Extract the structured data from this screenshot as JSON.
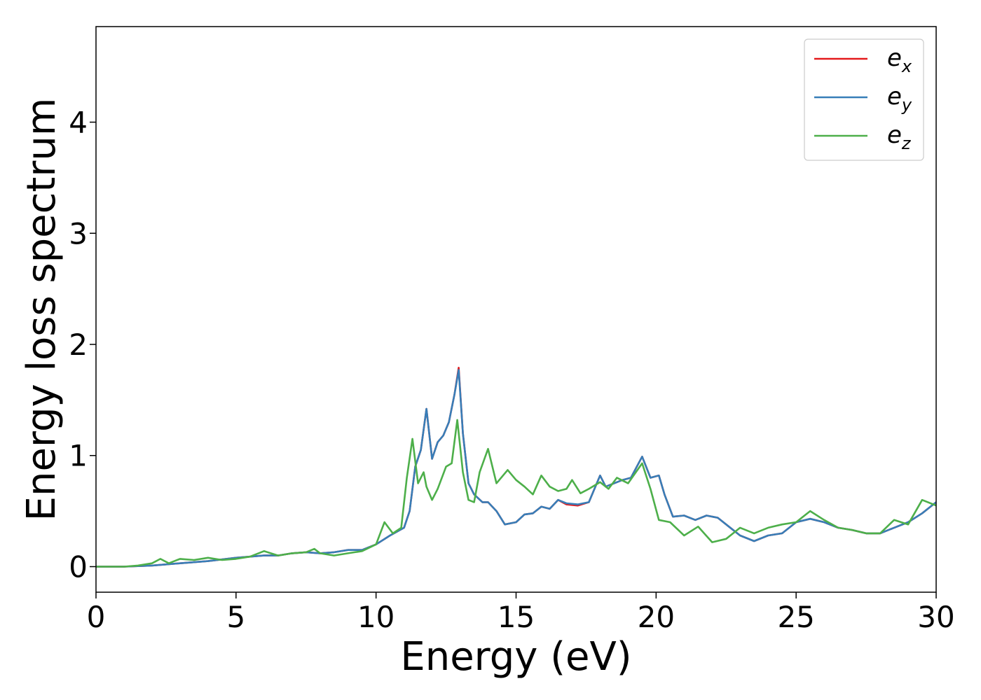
{
  "chart_data": {
    "type": "line",
    "title": "",
    "xlabel": "Energy (eV)",
    "ylabel": "Energy loss spectrum",
    "xlim": [
      0,
      30
    ],
    "ylim": [
      -0.23,
      4.86
    ],
    "xticks": [
      0,
      5,
      10,
      15,
      20,
      25,
      30
    ],
    "xtick_labels": [
      "0",
      "5",
      "10",
      "15",
      "20",
      "25",
      "30"
    ],
    "yticks": [
      0,
      1,
      2,
      3,
      4
    ],
    "ytick_labels": [
      "0",
      "1",
      "2",
      "3",
      "4"
    ],
    "grid": false,
    "legend_position": "top-right",
    "series": [
      {
        "name": "e_x",
        "label_base": "e",
        "label_sub": "x",
        "color": "#e41a1c",
        "x": [
          0,
          1,
          2,
          3,
          4,
          5,
          5.5,
          6,
          6.5,
          7,
          7.5,
          8,
          8.5,
          9,
          9.5,
          10,
          10.5,
          11,
          11.2,
          11.4,
          11.6,
          11.8,
          12.0,
          12.2,
          12.4,
          12.6,
          12.8,
          12.95,
          13.1,
          13.3,
          13.5,
          13.8,
          14.0,
          14.3,
          14.6,
          15.0,
          15.3,
          15.6,
          15.9,
          16.2,
          16.5,
          16.8,
          17.2,
          17.6,
          18.0,
          18.2,
          18.5,
          18.8,
          19.1,
          19.5,
          19.8,
          20.1,
          20.3,
          20.6,
          21.0,
          21.4,
          21.8,
          22.2,
          22.6,
          23.0,
          23.5,
          24.0,
          24.5,
          25.0,
          25.5,
          26.0,
          26.5,
          27.0,
          27.5,
          28.0,
          28.5,
          29.0,
          29.5,
          30.0
        ],
        "y": [
          0,
          0,
          0.01,
          0.03,
          0.05,
          0.08,
          0.09,
          0.1,
          0.1,
          0.12,
          0.13,
          0.12,
          0.13,
          0.15,
          0.15,
          0.2,
          0.28,
          0.35,
          0.5,
          0.9,
          1.05,
          1.42,
          0.97,
          1.12,
          1.18,
          1.3,
          1.55,
          1.79,
          1.2,
          0.75,
          0.65,
          0.58,
          0.58,
          0.5,
          0.38,
          0.4,
          0.47,
          0.48,
          0.54,
          0.52,
          0.6,
          0.56,
          0.55,
          0.58,
          0.82,
          0.72,
          0.75,
          0.78,
          0.8,
          0.99,
          0.8,
          0.82,
          0.65,
          0.45,
          0.46,
          0.42,
          0.46,
          0.44,
          0.36,
          0.28,
          0.23,
          0.28,
          0.3,
          0.4,
          0.43,
          0.4,
          0.35,
          0.33,
          0.3,
          0.3,
          0.35,
          0.4,
          0.48,
          0.58
        ]
      },
      {
        "name": "e_y",
        "label_base": "e",
        "label_sub": "y",
        "color": "#377eb8",
        "x": [
          0,
          1,
          2,
          3,
          4,
          5,
          5.5,
          6,
          6.5,
          7,
          7.5,
          8,
          8.5,
          9,
          9.5,
          10,
          10.5,
          11,
          11.2,
          11.4,
          11.6,
          11.8,
          12.0,
          12.2,
          12.4,
          12.6,
          12.8,
          12.95,
          13.1,
          13.3,
          13.5,
          13.8,
          14.0,
          14.3,
          14.6,
          15.0,
          15.3,
          15.6,
          15.9,
          16.2,
          16.5,
          16.8,
          17.2,
          17.6,
          18.0,
          18.2,
          18.5,
          18.8,
          19.1,
          19.5,
          19.8,
          20.1,
          20.3,
          20.6,
          21.0,
          21.4,
          21.8,
          22.2,
          22.6,
          23.0,
          23.5,
          24.0,
          24.5,
          25.0,
          25.5,
          26.0,
          26.5,
          27.0,
          27.5,
          28.0,
          28.5,
          29.0,
          29.5,
          30.0
        ],
        "y": [
          0,
          0,
          0.01,
          0.03,
          0.05,
          0.08,
          0.09,
          0.1,
          0.1,
          0.12,
          0.13,
          0.12,
          0.13,
          0.15,
          0.15,
          0.2,
          0.28,
          0.35,
          0.5,
          0.9,
          1.05,
          1.42,
          0.97,
          1.12,
          1.18,
          1.3,
          1.55,
          1.77,
          1.2,
          0.75,
          0.65,
          0.58,
          0.58,
          0.5,
          0.38,
          0.4,
          0.47,
          0.48,
          0.54,
          0.52,
          0.6,
          0.57,
          0.56,
          0.58,
          0.82,
          0.72,
          0.75,
          0.78,
          0.8,
          0.99,
          0.8,
          0.82,
          0.65,
          0.45,
          0.46,
          0.42,
          0.46,
          0.44,
          0.36,
          0.28,
          0.23,
          0.28,
          0.3,
          0.4,
          0.43,
          0.4,
          0.35,
          0.33,
          0.3,
          0.3,
          0.35,
          0.4,
          0.48,
          0.58
        ]
      },
      {
        "name": "e_z",
        "label_base": "e",
        "label_sub": "z",
        "color": "#4daf4a",
        "x": [
          0,
          1,
          1.5,
          2,
          2.3,
          2.6,
          3,
          3.5,
          4,
          4.5,
          5,
          5.5,
          6,
          6.5,
          7,
          7.5,
          7.8,
          8,
          8.5,
          9,
          9.5,
          10,
          10.3,
          10.6,
          10.9,
          11.1,
          11.3,
          11.5,
          11.7,
          11.8,
          12.0,
          12.2,
          12.5,
          12.7,
          12.9,
          13.1,
          13.3,
          13.5,
          13.7,
          14.0,
          14.3,
          14.7,
          15.0,
          15.3,
          15.6,
          15.9,
          16.2,
          16.5,
          16.8,
          17.0,
          17.3,
          17.6,
          18.0,
          18.3,
          18.6,
          19.0,
          19.5,
          19.8,
          20.1,
          20.5,
          21.0,
          21.5,
          22.0,
          22.5,
          23.0,
          23.5,
          24.0,
          24.5,
          25.0,
          25.5,
          26.0,
          26.5,
          27.0,
          27.5,
          28.0,
          28.5,
          29.0,
          29.5,
          30.0
        ],
        "y": [
          0,
          0,
          0.01,
          0.03,
          0.07,
          0.03,
          0.07,
          0.06,
          0.08,
          0.06,
          0.07,
          0.09,
          0.14,
          0.1,
          0.12,
          0.13,
          0.16,
          0.12,
          0.1,
          0.12,
          0.14,
          0.2,
          0.4,
          0.3,
          0.35,
          0.8,
          1.15,
          0.75,
          0.85,
          0.72,
          0.6,
          0.7,
          0.9,
          0.93,
          1.32,
          0.85,
          0.6,
          0.58,
          0.85,
          1.06,
          0.75,
          0.87,
          0.78,
          0.72,
          0.65,
          0.82,
          0.72,
          0.68,
          0.7,
          0.78,
          0.66,
          0.7,
          0.76,
          0.7,
          0.8,
          0.75,
          0.93,
          0.7,
          0.42,
          0.4,
          0.28,
          0.36,
          0.22,
          0.25,
          0.35,
          0.3,
          0.35,
          0.38,
          0.4,
          0.5,
          0.42,
          0.35,
          0.33,
          0.3,
          0.3,
          0.42,
          0.38,
          0.6,
          0.55
        ]
      }
    ]
  }
}
